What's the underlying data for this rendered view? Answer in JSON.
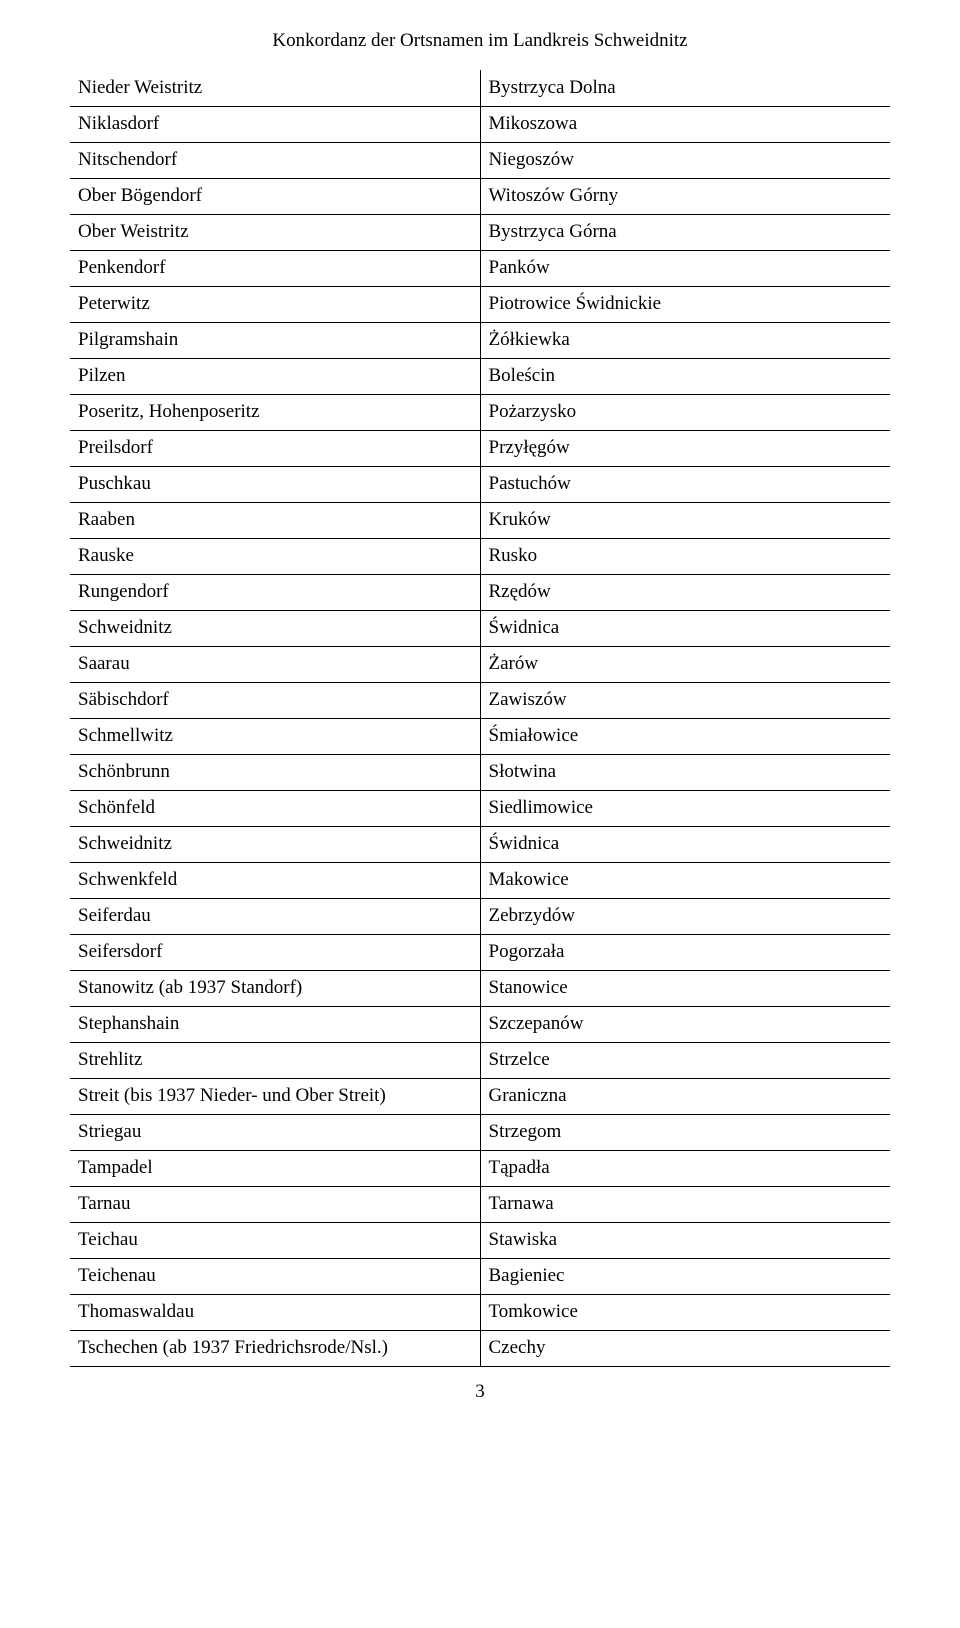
{
  "title": "Konkordanz der Ortsnamen im Landkreis Schweidnitz",
  "page_number": "3",
  "table": {
    "rows": [
      {
        "german": "Nieder Weistritz",
        "polish": "Bystrzyca Dolna"
      },
      {
        "german": "Niklasdorf",
        "polish": "Mikoszowa"
      },
      {
        "german": "Nitschendorf",
        "polish": "Niegoszów"
      },
      {
        "german": "Ober Bögendorf",
        "polish": "Witoszów Górny"
      },
      {
        "german": "Ober Weistritz",
        "polish": "Bystrzyca Górna"
      },
      {
        "german": "Penkendorf",
        "polish": "Panków"
      },
      {
        "german": "Peterwitz",
        "polish": "Piotrowice Świdnickie"
      },
      {
        "german": "Pilgramshain",
        "polish": "Żółkiewka"
      },
      {
        "german": "Pilzen",
        "polish": "Boleścin"
      },
      {
        "german": "Poseritz, Hohenposeritz",
        "polish": "Pożarzysko"
      },
      {
        "german": "Preilsdorf",
        "polish": "Przyłęgów"
      },
      {
        "german": "Puschkau",
        "polish": "Pastuchów"
      },
      {
        "german": "Raaben",
        "polish": "Kruków"
      },
      {
        "german": "Rauske",
        "polish": "Rusko"
      },
      {
        "german": "Rungendorf",
        "polish": "Rzędów"
      },
      {
        "german": "Schweidnitz",
        "polish": "Świdnica"
      },
      {
        "german": "Saarau",
        "polish": "Żarów"
      },
      {
        "german": "Säbischdorf",
        "polish": "Zawiszów"
      },
      {
        "german": "Schmellwitz",
        "polish": "Śmiałowice"
      },
      {
        "german": "Schönbrunn",
        "polish": "Słotwina"
      },
      {
        "german": "Schönfeld",
        "polish": "Siedlimowice"
      },
      {
        "german": "Schweidnitz",
        "polish": "Świdnica"
      },
      {
        "german": "Schwenkfeld",
        "polish": "Makowice"
      },
      {
        "german": "Seiferdau",
        "polish": "Zebrzydów"
      },
      {
        "german": "Seifersdorf",
        "polish": "Pogorzała"
      },
      {
        "german": "Stanowitz (ab 1937 Standorf)",
        "polish": "Stanowice"
      },
      {
        "german": "Stephanshain",
        "polish": "Szczepanów"
      },
      {
        "german": "Strehlitz",
        "polish": "Strzelce"
      },
      {
        "german": "Streit (bis 1937 Nieder- und Ober Streit)",
        "polish": "Graniczna"
      },
      {
        "german": "Striegau",
        "polish": "Strzegom"
      },
      {
        "german": "Tampadel",
        "polish": "Tąpadła"
      },
      {
        "german": "Tarnau",
        "polish": "Tarnawa"
      },
      {
        "german": "Teichau",
        "polish": "Stawiska"
      },
      {
        "german": "Teichenau",
        "polish": "Bagieniec"
      },
      {
        "german": "Thomaswaldau",
        "polish": "Tomkowice"
      },
      {
        "german": "Tschechen (ab 1937 Friedrichsrode/Nsl.)",
        "polish": "Czechy"
      }
    ]
  }
}
